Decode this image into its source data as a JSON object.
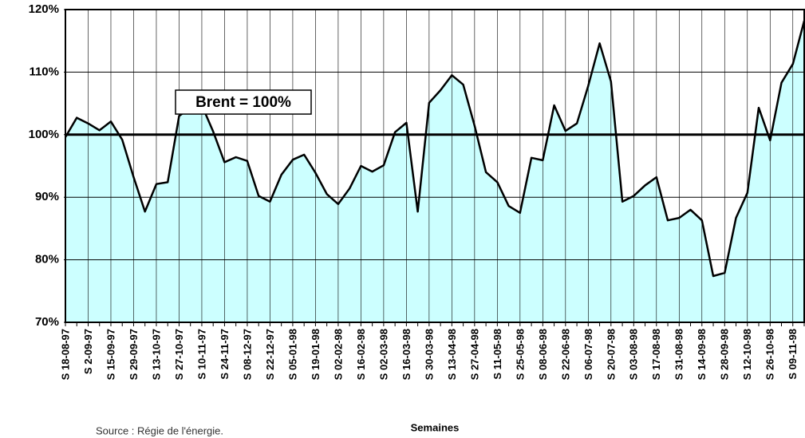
{
  "chart_data": {
    "type": "area",
    "categories": [
      "S 18-08-97",
      null,
      "S 2-09-97",
      null,
      "S 15-09-97",
      null,
      "S 29-09-97",
      null,
      "S 13-10-97",
      null,
      "S 27-10-97",
      null,
      "S 10-11-97",
      null,
      "S 24-11-97",
      null,
      "S 08-12-97",
      null,
      "S 22-12-97",
      null,
      "S 05-01-98",
      null,
      "S 19-01-98",
      null,
      "S 02-02-98",
      null,
      "S 16-02-98",
      null,
      "S 02-03-98",
      null,
      "S 16-03-98",
      null,
      "S 30-03-98",
      null,
      "S 13-04-98",
      null,
      "S 27-04-98",
      null,
      "S 11-05-98",
      null,
      "S 25-05-98",
      null,
      "S 08-06-98",
      null,
      "S 22-06-98",
      null,
      "S 06-07-98",
      null,
      "S 20-07-98",
      null,
      "S 03-08-98",
      null,
      "S 17-08-98",
      null,
      "S 31-08-98",
      null,
      "S 14-09-98",
      null,
      "S 28-09-98",
      null,
      "S 12-10-98",
      null,
      "S 26-10-98",
      null,
      "S 09-11-98",
      null
    ],
    "values": [
      99.6,
      102.7,
      101.8,
      100.7,
      102.1,
      99.2,
      93.2,
      87.7,
      92.1,
      92.4,
      103,
      104.3,
      104.7,
      100.5,
      95.6,
      96.4,
      95.8,
      90.2,
      89.3,
      93.6,
      96.0,
      96.8,
      93.9,
      90.5,
      88.9,
      91.4,
      95.0,
      94.1,
      95.1,
      100.4,
      101.9,
      87.7,
      105.1,
      107.1,
      109.5,
      108.0,
      101.4,
      94.0,
      92.4,
      88.6,
      87.5,
      96.3,
      95.9,
      104.7,
      100.6,
      101.8,
      107.8,
      114.6,
      108.5,
      89.3,
      90.2,
      91.9,
      93.2,
      86.3,
      86.7,
      88.0,
      86.3,
      77.4,
      77.9,
      86.7,
      90.7,
      104.3,
      99.1,
      108.3,
      111.3,
      118.2
    ],
    "color": "#000000",
    "fill": "#ccffff",
    "ylim": [
      70,
      120
    ],
    "yticks": [
      {
        "value": 70,
        "label": "70%"
      },
      {
        "value": 80,
        "label": "80%"
      },
      {
        "value": 90,
        "label": "90%"
      },
      {
        "value": 100,
        "label": "100%"
      },
      {
        "value": 110,
        "label": "110%"
      },
      {
        "value": 120,
        "label": "120%"
      }
    ],
    "grid": true,
    "reference_line": {
      "value": 100,
      "label": "Brent = 100%"
    },
    "x_label": "Semaines",
    "source": "Source : Régie de l'énergie."
  }
}
